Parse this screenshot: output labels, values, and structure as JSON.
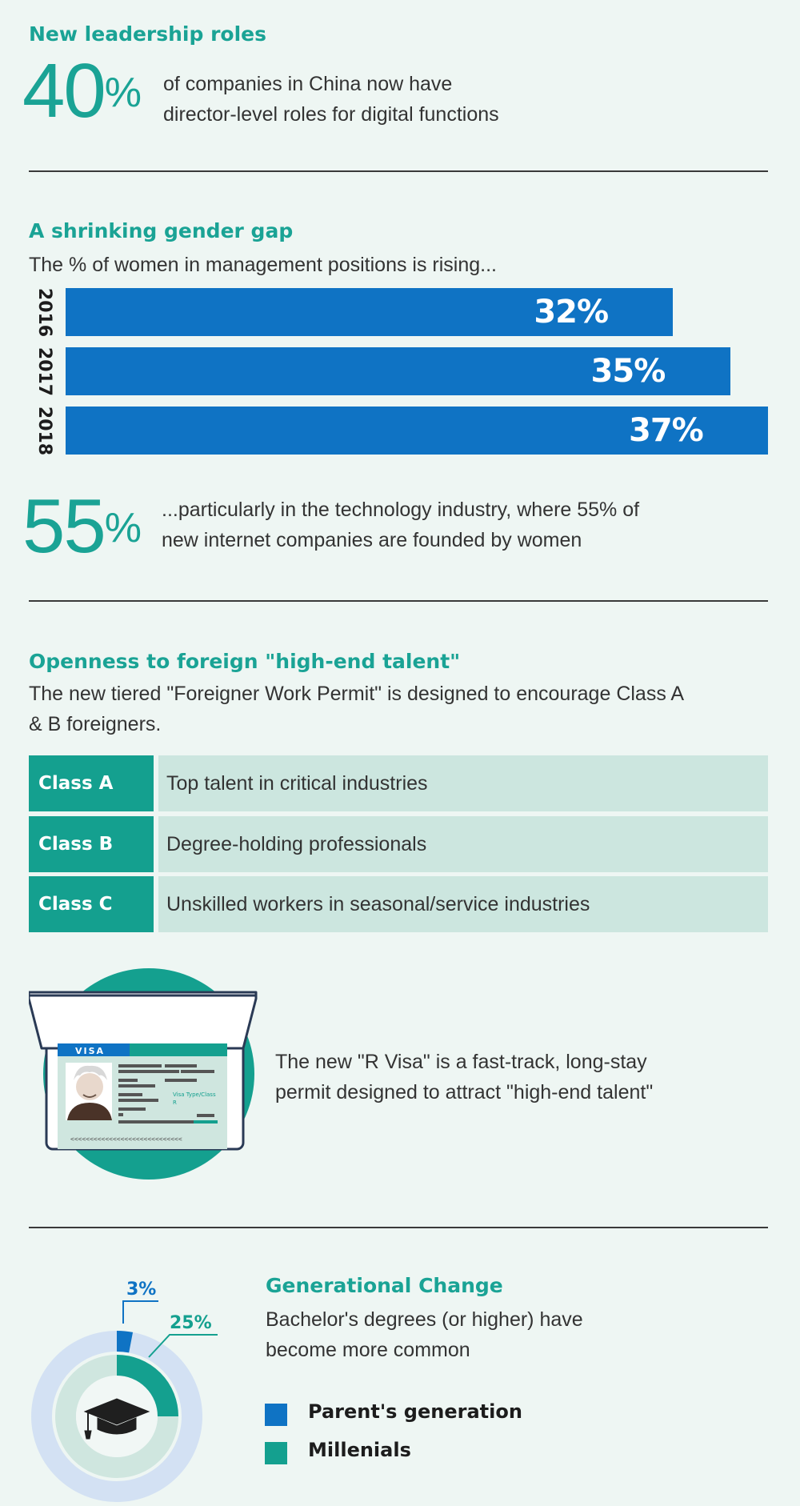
{
  "leadership": {
    "heading": "New leadership roles",
    "big_value": "40",
    "big_suffix": "%",
    "line1": "of companies in China now have",
    "line2": "director-level roles for digital functions"
  },
  "gender": {
    "heading": "A shrinking gender gap",
    "subtitle": "The % of women in management positions is rising...",
    "big_value": "55",
    "big_suffix": "%",
    "line1": "...particularly in the technology industry, where 55% of",
    "line2": "new internet companies are founded by women"
  },
  "chart_data": {
    "type": "bar",
    "orientation": "horizontal",
    "categories": [
      "2016",
      "2017",
      "2018"
    ],
    "values": [
      32,
      35,
      37
    ],
    "value_labels": [
      "32%",
      "35%",
      "37%"
    ],
    "xlim": [
      0,
      37
    ],
    "color": "#0f73c4"
  },
  "openness": {
    "heading": "Openness to foreign \"high-end talent\"",
    "line1": "The new tiered \"Foreigner Work Permit\" is designed to encourage Class A",
    "line2": "& B foreigners.",
    "rows": [
      {
        "cls": "Class A",
        "desc": "Top talent in critical industries"
      },
      {
        "cls": "Class B",
        "desc": "Degree-holding professionals"
      },
      {
        "cls": "Class C",
        "desc": "Unskilled workers in seasonal/service industries"
      }
    ]
  },
  "visa": {
    "card_title": "VISA",
    "type_label": "Visa Type/Class",
    "type_value": "R",
    "mrz": "<<<<<<<<<<<<<<<<<<<<<<<<<<<<<",
    "line1": "The new \"R Visa\" is a fast-track, long-stay",
    "line2": "permit designed to attract \"high-end talent\""
  },
  "generational": {
    "heading": "Generational Change",
    "line1": "Bachelor's degrees (or higher) have",
    "line2": "become more common",
    "parents_value": 3,
    "parents_label": "3%",
    "millenials_value": 25,
    "millenials_label": "25%",
    "legend": [
      {
        "label": "Parent's generation",
        "color": "#0f73c4"
      },
      {
        "label": "Millenials",
        "color": "#14a08f"
      }
    ],
    "colors": {
      "outer_ring": "#d3e1f3",
      "inner_ring": "#cfe6df",
      "center": "#f1f7f5",
      "cap": "#1f1f1f"
    }
  },
  "colors": {
    "accent": "#1aa395",
    "blue": "#0f73c4",
    "background": "#eef6f3"
  }
}
